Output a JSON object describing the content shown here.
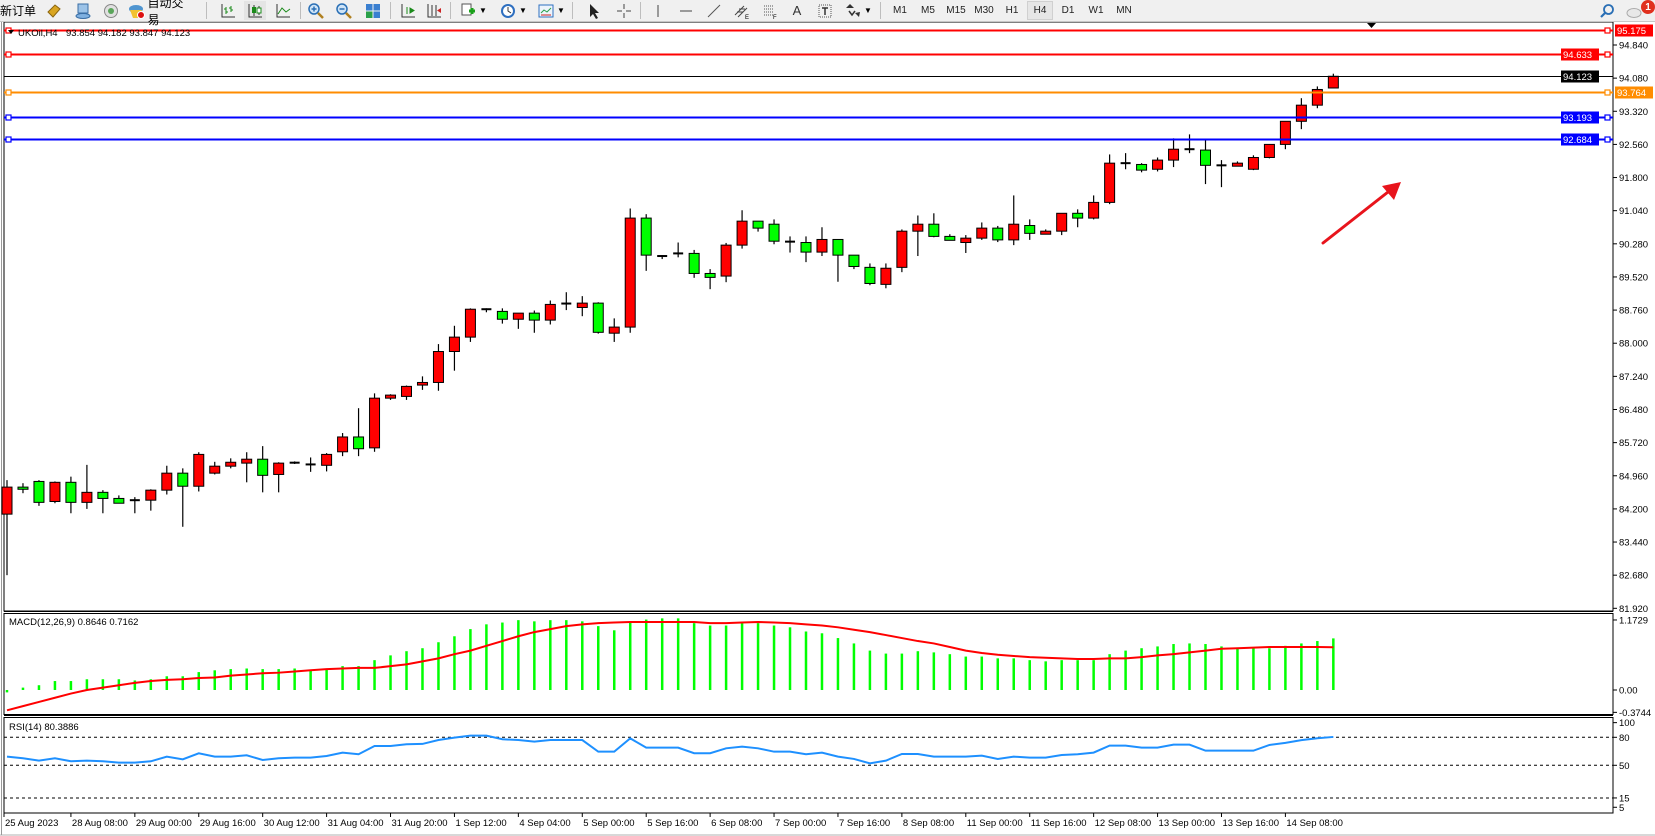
{
  "toolbar": {
    "new_order_label": "新订单",
    "autotrade_label": "自动交易",
    "timeframes": [
      "M1",
      "M5",
      "M15",
      "M30",
      "H1",
      "H4",
      "D1",
      "W1",
      "MN"
    ],
    "active_timeframe": "H4",
    "notification_count": "1",
    "icons": [
      "market-watch-icon",
      "data-window-icon",
      "signals-icon",
      "autotrade-icon",
      "bar-chart-icon",
      "candlestick-icon",
      "line-chart-icon",
      "zoom-in-icon",
      "zoom-out-icon",
      "tile-windows-icon",
      "autoscroll-icon",
      "chart-shift-icon",
      "indicators-icon",
      "periods-icon",
      "templates-icon",
      "cursor-icon",
      "crosshair-icon",
      "vertical-line-icon",
      "horizontal-line-icon",
      "trendline-icon",
      "equidistant-channel-icon",
      "fibonacci-icon",
      "text-icon",
      "text-label-icon",
      "arrows-icon",
      "search-icon",
      "notification-icon"
    ]
  },
  "chart_data": {
    "type": "candlestick",
    "symbol_label": "UKOil,H4",
    "ohlc_label": "93.854 94.182 93.847 94.123",
    "colors": {
      "bull": "#ff0000",
      "bear": "#00ff00",
      "outline": "#000000"
    },
    "price_ticks": [
      "94.840",
      "94.080",
      "93.320",
      "92.560",
      "91.800",
      "91.040",
      "90.280",
      "89.520",
      "88.760",
      "88.000",
      "87.240",
      "86.480",
      "85.720",
      "84.960",
      "84.200",
      "83.440",
      "82.680",
      "81.920"
    ],
    "time_labels": [
      {
        "i": 0,
        "label": "25 Aug 2023"
      },
      {
        "i": 4,
        "label": "28 Aug 08:00"
      },
      {
        "i": 8,
        "label": "29 Aug 00:00"
      },
      {
        "i": 12,
        "label": "29 Aug 16:00"
      },
      {
        "i": 16,
        "label": "30 Aug 12:00"
      },
      {
        "i": 20,
        "label": "31 Aug 04:00"
      },
      {
        "i": 24,
        "label": "31 Aug 20:00"
      },
      {
        "i": 28,
        "label": "1 Sep 12:00"
      },
      {
        "i": 32,
        "label": "4 Sep 04:00"
      },
      {
        "i": 36,
        "label": "5 Sep 00:00"
      },
      {
        "i": 40,
        "label": "5 Sep 16:00"
      },
      {
        "i": 44,
        "label": "6 Sep 08:00"
      },
      {
        "i": 48,
        "label": "7 Sep 00:00"
      },
      {
        "i": 52,
        "label": "7 Sep 16:00"
      },
      {
        "i": 56,
        "label": "8 Sep 08:00"
      },
      {
        "i": 60,
        "label": "11 Sep 00:00"
      },
      {
        "i": 64,
        "label": "11 Sep 16:00"
      },
      {
        "i": 68,
        "label": "12 Sep 08:00"
      },
      {
        "i": 72,
        "label": "13 Sep 00:00"
      },
      {
        "i": 76,
        "label": "13 Sep 16:00"
      },
      {
        "i": 80,
        "label": "14 Sep 08:00"
      }
    ],
    "candles": [
      [
        84.08,
        84.86,
        82.68,
        84.7
      ],
      [
        84.7,
        84.79,
        84.56,
        84.65
      ],
      [
        84.83,
        84.86,
        84.27,
        84.35
      ],
      [
        84.37,
        84.83,
        84.33,
        84.81
      ],
      [
        84.81,
        84.94,
        84.1,
        84.35
      ],
      [
        84.35,
        85.21,
        84.2,
        84.58
      ],
      [
        84.58,
        84.63,
        84.1,
        84.44
      ],
      [
        84.44,
        84.51,
        84.33,
        84.33
      ],
      [
        84.39,
        84.47,
        84.1,
        84.4
      ],
      [
        84.4,
        84.65,
        84.16,
        84.63
      ],
      [
        84.63,
        85.19,
        84.53,
        85.02
      ],
      [
        85.02,
        85.13,
        83.79,
        84.72
      ],
      [
        84.72,
        85.5,
        84.6,
        85.45
      ],
      [
        85.02,
        85.28,
        84.99,
        85.18
      ],
      [
        85.18,
        85.36,
        85.13,
        85.27
      ],
      [
        85.25,
        85.5,
        84.81,
        85.34
      ],
      [
        85.34,
        85.64,
        84.58,
        84.97
      ],
      [
        84.99,
        85.27,
        84.58,
        85.25
      ],
      [
        85.25,
        85.29,
        85.23,
        85.26
      ],
      [
        85.22,
        85.38,
        85.05,
        85.21
      ],
      [
        85.2,
        85.48,
        85.06,
        85.45
      ],
      [
        85.51,
        85.94,
        85.41,
        85.85
      ],
      [
        85.85,
        86.51,
        85.41,
        85.58
      ],
      [
        85.6,
        86.85,
        85.51,
        86.74
      ],
      [
        86.74,
        86.83,
        86.7,
        86.81
      ],
      [
        86.78,
        87.03,
        86.7,
        87.01
      ],
      [
        87.04,
        87.24,
        86.93,
        87.1
      ],
      [
        87.1,
        87.98,
        86.91,
        87.81
      ],
      [
        87.81,
        88.4,
        87.37,
        88.14
      ],
      [
        88.14,
        88.8,
        88.03,
        88.78
      ],
      [
        88.78,
        88.8,
        88.71,
        88.78
      ],
      [
        88.73,
        88.8,
        88.45,
        88.55
      ],
      [
        88.55,
        88.69,
        88.33,
        88.69
      ],
      [
        88.69,
        88.75,
        88.24,
        88.53
      ],
      [
        88.53,
        88.98,
        88.43,
        88.89
      ],
      [
        88.9,
        89.17,
        88.76,
        88.91
      ],
      [
        88.82,
        89.08,
        88.62,
        88.92
      ],
      [
        88.92,
        88.94,
        88.22,
        88.25
      ],
      [
        88.23,
        88.57,
        88.03,
        88.37
      ],
      [
        88.37,
        91.09,
        88.24,
        90.87
      ],
      [
        90.87,
        90.96,
        89.66,
        90.02
      ],
      [
        90.0,
        90.02,
        89.93,
        89.98
      ],
      [
        90.05,
        90.31,
        89.97,
        90.06
      ],
      [
        90.06,
        90.14,
        89.5,
        89.6
      ],
      [
        89.6,
        89.7,
        89.24,
        89.51
      ],
      [
        89.54,
        90.3,
        89.4,
        90.25
      ],
      [
        90.25,
        91.05,
        90.17,
        90.8
      ],
      [
        90.8,
        90.8,
        90.56,
        90.64
      ],
      [
        90.73,
        90.84,
        90.27,
        90.34
      ],
      [
        90.33,
        90.45,
        90.08,
        90.33
      ],
      [
        90.31,
        90.45,
        89.86,
        90.09
      ],
      [
        90.09,
        90.66,
        90.0,
        90.38
      ],
      [
        90.38,
        90.38,
        89.41,
        90.02
      ],
      [
        90.02,
        90.02,
        89.7,
        89.76
      ],
      [
        89.74,
        89.83,
        89.33,
        89.37
      ],
      [
        89.35,
        89.83,
        89.26,
        89.72
      ],
      [
        89.74,
        90.61,
        89.63,
        90.57
      ],
      [
        90.57,
        90.93,
        90.0,
        90.73
      ],
      [
        90.73,
        90.98,
        90.43,
        90.45
      ],
      [
        90.45,
        90.5,
        90.36,
        90.36
      ],
      [
        90.31,
        90.48,
        90.07,
        90.41
      ],
      [
        90.41,
        90.77,
        90.37,
        90.64
      ],
      [
        90.64,
        90.69,
        90.32,
        90.37
      ],
      [
        90.37,
        91.39,
        90.25,
        90.73
      ],
      [
        90.7,
        90.84,
        90.37,
        90.52
      ],
      [
        90.5,
        90.61,
        90.5,
        90.57
      ],
      [
        90.57,
        90.98,
        90.48,
        90.98
      ],
      [
        90.98,
        91.07,
        90.66,
        90.87
      ],
      [
        90.87,
        91.39,
        90.84,
        91.23
      ],
      [
        91.23,
        92.33,
        91.19,
        92.13
      ],
      [
        92.13,
        92.36,
        91.99,
        92.12
      ],
      [
        92.1,
        92.13,
        91.92,
        91.97
      ],
      [
        91.99,
        92.26,
        91.94,
        92.2
      ],
      [
        92.2,
        92.7,
        92.04,
        92.45
      ],
      [
        92.45,
        92.79,
        92.36,
        92.44
      ],
      [
        92.43,
        92.65,
        91.65,
        92.08
      ],
      [
        92.08,
        92.2,
        91.58,
        92.07
      ],
      [
        92.06,
        92.17,
        92.06,
        92.13
      ],
      [
        91.99,
        92.31,
        91.97,
        92.26
      ],
      [
        92.26,
        92.56,
        92.24,
        92.56
      ],
      [
        92.56,
        93.09,
        92.45,
        93.09
      ],
      [
        93.09,
        93.62,
        92.91,
        93.46
      ],
      [
        93.46,
        93.89,
        93.39,
        93.82
      ],
      [
        93.854,
        94.182,
        93.847,
        94.123
      ]
    ],
    "horizontal_lines": [
      {
        "price": "95.175",
        "color": "#ff0000"
      },
      {
        "price": "94.633",
        "color": "#ff0000"
      },
      {
        "price": "94.123",
        "color": "#000000",
        "kind": "bid"
      },
      {
        "price": "93.764",
        "color": "#ff8c00"
      },
      {
        "price": "93.193",
        "color": "#0000ff"
      },
      {
        "price": "92.684",
        "color": "#0000ff"
      }
    ],
    "annotation_arrow": {
      "color": "#e8141c",
      "direction": "up-right"
    },
    "macd": {
      "label": "MACD(12,26,9) 0.8646 0.7162",
      "axis_labels": [
        "1.1729",
        "0.00",
        "-0.3744"
      ],
      "histogram_color": "#00ff00",
      "signal_color": "#ff0000",
      "histogram": [
        -0.04,
        0.04,
        0.08,
        0.15,
        0.15,
        0.18,
        0.18,
        0.18,
        0.16,
        0.18,
        0.23,
        0.23,
        0.3,
        0.33,
        0.35,
        0.36,
        0.35,
        0.35,
        0.36,
        0.33,
        0.35,
        0.4,
        0.4,
        0.5,
        0.58,
        0.65,
        0.7,
        0.8,
        0.9,
        1.02,
        1.1,
        1.13,
        1.17,
        1.15,
        1.17,
        1.17,
        1.15,
        1.07,
        1.0,
        1.13,
        1.18,
        1.2,
        1.2,
        1.12,
        1.08,
        1.08,
        1.12,
        1.12,
        1.08,
        1.05,
        0.98,
        0.95,
        0.87,
        0.78,
        0.66,
        0.61,
        0.61,
        0.65,
        0.63,
        0.6,
        0.56,
        0.56,
        0.53,
        0.53,
        0.5,
        0.48,
        0.5,
        0.5,
        0.5,
        0.6,
        0.66,
        0.7,
        0.73,
        0.77,
        0.78,
        0.77,
        0.73,
        0.7,
        0.7,
        0.7,
        0.74,
        0.78,
        0.82,
        0.8646
      ],
      "signal": [
        -0.34,
        -0.27,
        -0.2,
        -0.13,
        -0.06,
        0.0,
        0.04,
        0.08,
        0.12,
        0.15,
        0.17,
        0.18,
        0.2,
        0.21,
        0.24,
        0.26,
        0.28,
        0.29,
        0.31,
        0.33,
        0.35,
        0.36,
        0.37,
        0.37,
        0.4,
        0.43,
        0.48,
        0.53,
        0.6,
        0.66,
        0.74,
        0.82,
        0.9,
        0.97,
        1.02,
        1.07,
        1.1,
        1.12,
        1.13,
        1.14,
        1.14,
        1.14,
        1.14,
        1.14,
        1.12,
        1.12,
        1.13,
        1.14,
        1.13,
        1.12,
        1.1,
        1.08,
        1.05,
        1.01,
        0.97,
        0.92,
        0.87,
        0.82,
        0.78,
        0.72,
        0.66,
        0.62,
        0.59,
        0.57,
        0.55,
        0.54,
        0.53,
        0.52,
        0.52,
        0.53,
        0.53,
        0.55,
        0.58,
        0.6,
        0.63,
        0.66,
        0.69,
        0.7,
        0.71,
        0.72,
        0.72,
        0.72,
        0.72,
        0.7162
      ]
    },
    "rsi": {
      "label": "RSI(14) 80.3886",
      "axis_labels": [
        "100",
        "80",
        "50",
        "15",
        "5"
      ],
      "levels": [
        80,
        50,
        15
      ],
      "color": "#1e90ff",
      "values": [
        59.3,
        57.5,
        55,
        57.5,
        54.3,
        55,
        54.3,
        52.9,
        52.9,
        54.3,
        59.3,
        56.4,
        62.9,
        59.3,
        59.3,
        60.7,
        55.7,
        57.5,
        58.2,
        58.2,
        60,
        63.6,
        61.8,
        70.7,
        70.7,
        72.5,
        72.9,
        77.1,
        79.6,
        81.8,
        81.8,
        77.9,
        77.1,
        75.4,
        77.1,
        77.1,
        77.1,
        64.6,
        64.6,
        78.9,
        68.9,
        68.9,
        68.9,
        62.9,
        62.9,
        68.2,
        70,
        68.2,
        64.6,
        64.6,
        61.8,
        63.6,
        59.3,
        56.8,
        52.1,
        55,
        62.1,
        62.1,
        59.3,
        59.3,
        59.3,
        60.4,
        56.8,
        59.3,
        58.2,
        58.2,
        61,
        61.8,
        63.6,
        71.1,
        71.1,
        68.9,
        68.9,
        72.1,
        72.1,
        65.7,
        65.7,
        65.7,
        65.7,
        71.8,
        74,
        77,
        79,
        80.3886
      ]
    }
  }
}
